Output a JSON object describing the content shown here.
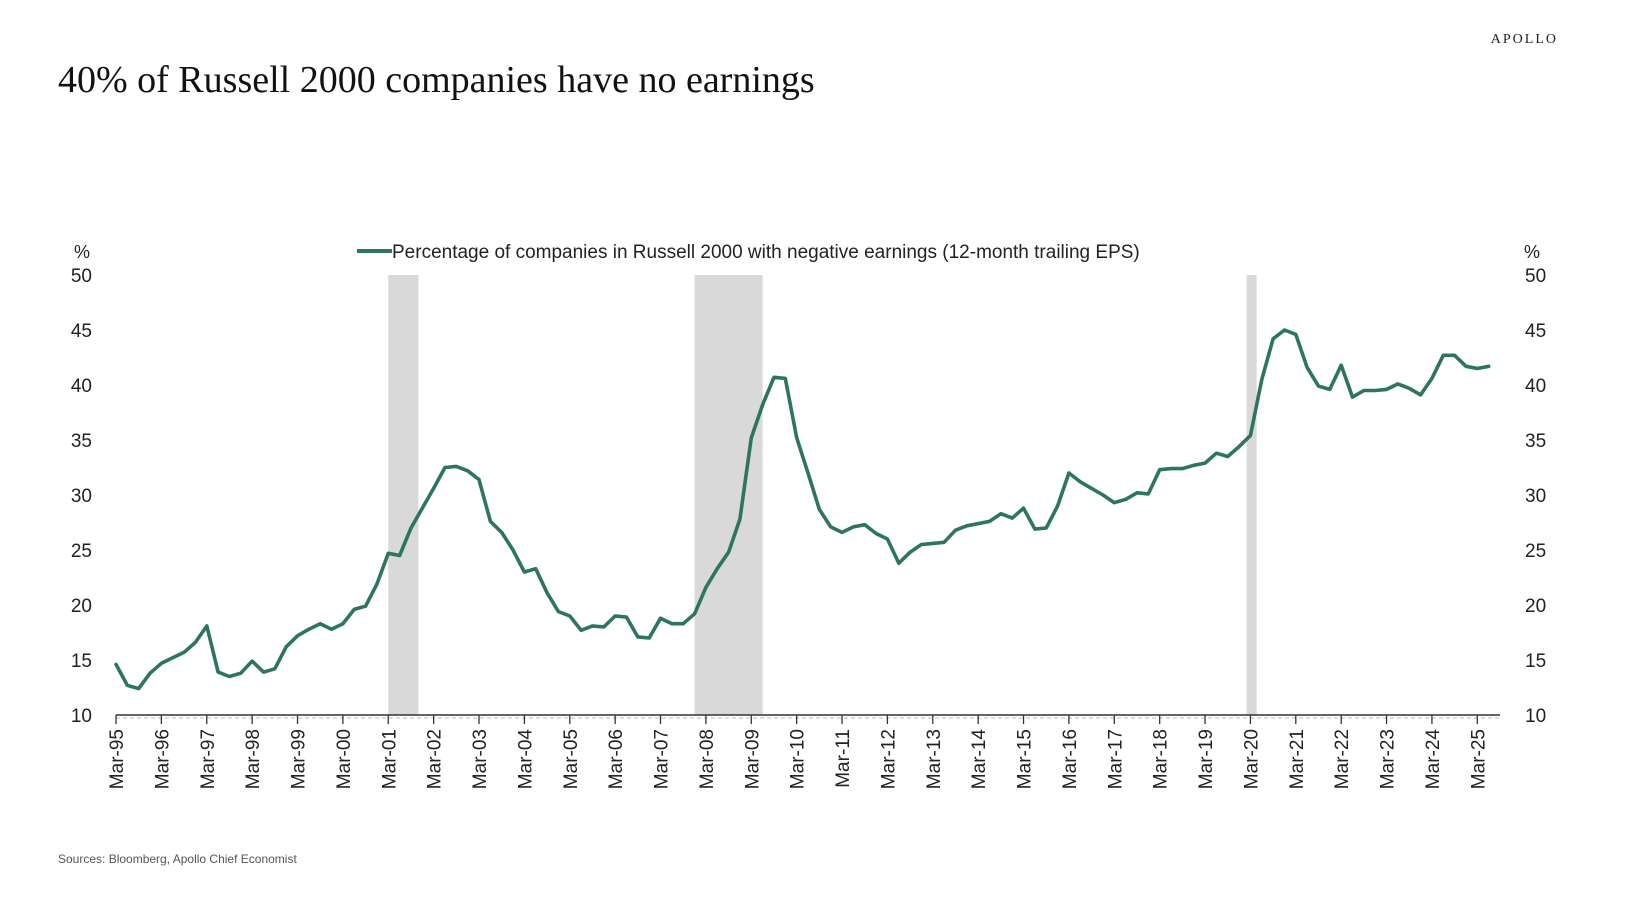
{
  "brand": "APOLLO",
  "title": "40% of Russell 2000 companies have no earnings",
  "source": "Sources: Bloomberg, Apollo Chief Economist",
  "colors": {
    "line": "#2e7560",
    "recession": "#d9d9d9",
    "axis": "#333333"
  },
  "chart_data": {
    "type": "line",
    "ylabel_left": "%",
    "ylabel_right": "%",
    "ylim": [
      10,
      50
    ],
    "yticks": [
      10,
      15,
      20,
      25,
      30,
      35,
      40,
      45,
      50
    ],
    "x_start": "1995-03",
    "x_end": "2025-09",
    "x_tick_labels": [
      "Mar-95",
      "Mar-96",
      "Mar-97",
      "Mar-98",
      "Mar-99",
      "Mar-00",
      "Mar-01",
      "Mar-02",
      "Mar-03",
      "Mar-04",
      "Mar-05",
      "Mar-06",
      "Mar-07",
      "Mar-08",
      "Mar-09",
      "Mar-10",
      "Mar-11",
      "Mar-12",
      "Mar-13",
      "Mar-14",
      "Mar-15",
      "Mar-16",
      "Mar-17",
      "Mar-18",
      "Mar-19",
      "Mar-20",
      "Mar-21",
      "Mar-22",
      "Mar-23",
      "Mar-24",
      "Mar-25"
    ],
    "legend_position": "top-center",
    "grid": false,
    "recessions": [
      {
        "start": "2001-03",
        "end": "2001-11"
      },
      {
        "start": "2007-12",
        "end": "2009-06"
      },
      {
        "start": "2020-02",
        "end": "2020-04"
      }
    ],
    "series": [
      {
        "name": "Percentage of companies in Russell 2000 with negative earnings (12-month trailing EPS)",
        "x": [
          "1995-03",
          "1995-06",
          "1995-09",
          "1995-12",
          "1996-03",
          "1996-06",
          "1996-09",
          "1996-12",
          "1997-03",
          "1997-06",
          "1997-09",
          "1997-12",
          "1998-03",
          "1998-06",
          "1998-09",
          "1998-12",
          "1999-03",
          "1999-06",
          "1999-09",
          "1999-12",
          "2000-03",
          "2000-06",
          "2000-09",
          "2000-12",
          "2001-03",
          "2001-06",
          "2001-09",
          "2001-12",
          "2002-03",
          "2002-06",
          "2002-09",
          "2002-12",
          "2003-03",
          "2003-06",
          "2003-09",
          "2003-12",
          "2004-03",
          "2004-06",
          "2004-09",
          "2004-12",
          "2005-03",
          "2005-06",
          "2005-09",
          "2005-12",
          "2006-03",
          "2006-06",
          "2006-09",
          "2006-12",
          "2007-03",
          "2007-06",
          "2007-09",
          "2007-12",
          "2008-03",
          "2008-06",
          "2008-09",
          "2008-12",
          "2009-03",
          "2009-06",
          "2009-09",
          "2009-12",
          "2010-03",
          "2010-06",
          "2010-09",
          "2010-12",
          "2011-03",
          "2011-06",
          "2011-09",
          "2011-12",
          "2012-03",
          "2012-06",
          "2012-09",
          "2012-12",
          "2013-03",
          "2013-06",
          "2013-09",
          "2013-12",
          "2014-03",
          "2014-06",
          "2014-09",
          "2014-12",
          "2015-03",
          "2015-06",
          "2015-09",
          "2015-12",
          "2016-03",
          "2016-06",
          "2016-09",
          "2016-12",
          "2017-03",
          "2017-06",
          "2017-09",
          "2017-12",
          "2018-03",
          "2018-06",
          "2018-09",
          "2018-12",
          "2019-03",
          "2019-06",
          "2019-09",
          "2019-12",
          "2020-03",
          "2020-06",
          "2020-09",
          "2020-12",
          "2021-03",
          "2021-06",
          "2021-09",
          "2021-12",
          "2022-03",
          "2022-06",
          "2022-09",
          "2022-12",
          "2023-03",
          "2023-06",
          "2023-09",
          "2023-12",
          "2024-03",
          "2024-06",
          "2024-09",
          "2024-12",
          "2025-03",
          "2025-06"
        ],
        "values": [
          14.6,
          12.7,
          12.4,
          13.8,
          14.7,
          15.2,
          15.7,
          16.6,
          18.1,
          13.9,
          13.5,
          13.8,
          14.9,
          13.9,
          14.2,
          16.2,
          17.2,
          17.8,
          18.3,
          17.8,
          18.3,
          19.6,
          19.9,
          21.9,
          24.7,
          24.5,
          27.0,
          28.8,
          30.6,
          32.5,
          32.6,
          32.2,
          31.4,
          27.6,
          26.6,
          25.0,
          23.0,
          23.3,
          21.1,
          19.4,
          19.0,
          17.7,
          18.1,
          18.0,
          19.0,
          18.9,
          17.1,
          17.0,
          18.8,
          18.3,
          18.3,
          19.2,
          21.6,
          23.3,
          24.8,
          27.8,
          35.2,
          38.2,
          40.7,
          40.6,
          35.2,
          32.0,
          28.7,
          27.1,
          26.6,
          27.1,
          27.3,
          26.5,
          26.0,
          23.8,
          24.8,
          25.5,
          25.6,
          25.7,
          26.8,
          27.2,
          27.4,
          27.6,
          28.3,
          27.9,
          28.8,
          26.9,
          27.0,
          29.0,
          32.0,
          31.2,
          30.6,
          30.0,
          29.3,
          29.6,
          30.2,
          30.1,
          32.3,
          32.4,
          32.4,
          32.7,
          32.9,
          33.8,
          33.5,
          34.4,
          35.4,
          40.5,
          44.2,
          45.0,
          44.6,
          41.6,
          39.9,
          39.6,
          41.8,
          38.9,
          39.5,
          39.5,
          39.6,
          40.1,
          39.7,
          39.1,
          40.6,
          42.7,
          42.7,
          41.7,
          41.5,
          41.7
        ]
      }
    ]
  }
}
